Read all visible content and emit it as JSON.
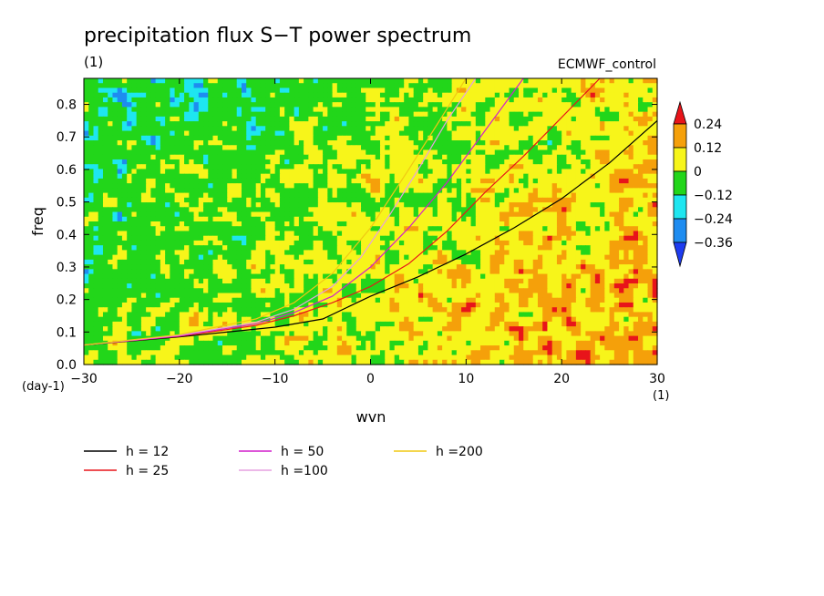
{
  "chart_data": {
    "type": "heatmap",
    "title": "precipitation flux S−T power spectrum",
    "subtitle": "(1)",
    "dataset": "ECMWF_control",
    "xlabel": "wvn",
    "ylabel": "freq",
    "x_unit": "(1)",
    "y_unit": "(day-1)",
    "xlim": [
      -30,
      30
    ],
    "ylim": [
      0,
      0.88
    ],
    "x_ticks": [
      "−30",
      "−20",
      "−10",
      "0",
      "10",
      "20",
      "30"
    ],
    "y_ticks": [
      "0.0",
      "0.1",
      "0.2",
      "0.3",
      "0.4",
      "0.5",
      "0.6",
      "0.7",
      "0.8"
    ],
    "colorbar": {
      "labels": [
        "0.24",
        "0.12",
        "0",
        "−0.12",
        "−0.24",
        "−0.36"
      ],
      "colors": [
        "#e8141a",
        "#f5a00a",
        "#f7f51a",
        "#22d61a",
        "#1ee6f0",
        "#1e8cf0",
        "#1e3cf0"
      ]
    },
    "field_note": "noisy normalized power field; warmer (yellow/orange) east of ~0 wvn, cooler (green/cyan) at higher frequencies west",
    "dispersion_curves": [
      {
        "name": "h = 12",
        "color": "#000000",
        "x": [
          -30,
          -20,
          -10,
          -5,
          0,
          5,
          10,
          15,
          20,
          25,
          30
        ],
        "y": [
          0.06,
          0.085,
          0.115,
          0.14,
          0.21,
          0.27,
          0.34,
          0.42,
          0.51,
          0.62,
          0.75
        ]
      },
      {
        "name": "h = 25",
        "color": "#e8141a",
        "x": [
          -30,
          -20,
          -12,
          -8,
          -4,
          0,
          4,
          8,
          12,
          16,
          20,
          24
        ],
        "y": [
          0.06,
          0.087,
          0.12,
          0.15,
          0.19,
          0.24,
          0.31,
          0.41,
          0.53,
          0.64,
          0.76,
          0.88
        ]
      },
      {
        "name": "h = 50",
        "color": "#d21ecc",
        "x": [
          -30,
          -20,
          -12,
          -8,
          -4,
          0,
          4,
          8,
          12,
          16
        ],
        "y": [
          0.06,
          0.088,
          0.125,
          0.16,
          0.21,
          0.3,
          0.42,
          0.56,
          0.72,
          0.88
        ]
      },
      {
        "name": "h =100",
        "color": "#e6a0e0",
        "x": [
          -30,
          -20,
          -12,
          -8,
          -4,
          -1,
          2,
          5,
          8,
          11
        ],
        "y": [
          0.06,
          0.09,
          0.13,
          0.17,
          0.24,
          0.33,
          0.46,
          0.6,
          0.75,
          0.88
        ]
      },
      {
        "name": "h =200",
        "color": "#f0c814",
        "x": [
          -30,
          -20,
          -12,
          -8,
          -4,
          -2,
          0,
          2,
          4,
          7,
          10
        ],
        "y": [
          0.06,
          0.092,
          0.14,
          0.19,
          0.28,
          0.35,
          0.42,
          0.51,
          0.6,
          0.74,
          0.88
        ]
      }
    ],
    "legend": [
      {
        "label": "h = 12",
        "color": "#000000"
      },
      {
        "label": "h = 50",
        "color": "#d21ecc"
      },
      {
        "label": "h =200",
        "color": "#f0c814"
      },
      {
        "label": "h = 25",
        "color": "#e8141a"
      },
      {
        "label": "h =100",
        "color": "#e6a0e0"
      }
    ]
  }
}
